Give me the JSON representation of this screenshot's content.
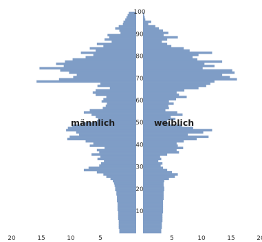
{
  "chart_data": {
    "type": "bar",
    "orientation": "horizontal",
    "colors": {
      "bar": "#7f9dc6",
      "background": "#ffffff"
    },
    "series": [
      {
        "name": "männlich",
        "values": [
          1.8,
          1.8,
          1.9,
          1.9,
          1.9,
          1.9,
          2.0,
          2.0,
          2.0,
          2.0,
          2.1,
          2.1,
          2.1,
          2.1,
          2.2,
          2.2,
          2.2,
          2.3,
          2.3,
          2.5,
          2.5,
          2.6,
          2.7,
          2.9,
          3.3,
          4.0,
          4.5,
          5.6,
          7.8,
          7.0,
          5.2,
          4.9,
          4.4,
          5.5,
          5.0,
          6.5,
          5.2,
          5.6,
          4.3,
          6.8,
          6.2,
          7.5,
          10.6,
          10.2,
          8.6,
          9.1,
          10.8,
          10.5,
          9.8,
          8.0,
          5.6,
          5.4,
          5.8,
          6.5,
          7.8,
          6.8,
          4.6,
          4.1,
          3.9,
          4.8,
          4.5,
          4.0,
          5.8,
          6.3,
          5.8,
          3.4,
          5.5,
          5.0,
          15.8,
          12.0,
          9.6,
          9.0,
          10.3,
          11.8,
          15.3,
          11.2,
          12.5,
          11.0,
          9.7,
          7.5,
          6.2,
          8.3,
          5.8,
          6.8,
          4.5,
          5.6,
          3.1,
          4.3,
          3.5,
          3.8,
          1.6,
          1.8,
          2.5,
          1.9,
          1.2,
          1.1,
          0.8,
          0.6,
          0.4,
          0.2
        ]
      },
      {
        "name": "weiblich",
        "values": [
          3.2,
          3.2,
          3.3,
          3.3,
          3.3,
          3.4,
          3.4,
          3.4,
          3.4,
          3.5,
          3.5,
          3.5,
          3.5,
          3.5,
          3.5,
          3.6,
          3.6,
          3.6,
          3.6,
          3.7,
          3.7,
          3.6,
          3.6,
          3.7,
          4.5,
          5.5,
          6.0,
          5.0,
          4.2,
          3.5,
          3.1,
          3.4,
          2.7,
          3.2,
          3.0,
          4.2,
          6.2,
          5.8,
          6.9,
          6.0,
          5.8,
          7.0,
          9.2,
          11.2,
          7.7,
          10.3,
          11.8,
          8.6,
          6.7,
          4.5,
          4.2,
          5.6,
          4.8,
          6.8,
          5.9,
          3.9,
          4.5,
          4.4,
          5.3,
          4.5,
          5.7,
          7.5,
          6.2,
          5.8,
          7.1,
          9.5,
          10.8,
          11.5,
          12.2,
          16.0,
          14.8,
          13.5,
          15.6,
          15.2,
          10.2,
          12.2,
          10.5,
          13.5,
          9.3,
          8.5,
          9.5,
          11.8,
          8.0,
          7.0,
          4.9,
          4.2,
          3.3,
          4.2,
          6.0,
          3.6,
          4.4,
          3.5,
          2.8,
          2.2,
          1.0,
          1.5,
          0.5,
          0.4,
          0.3,
          0.2
        ]
      }
    ],
    "y_ticks": [
      "10",
      "20",
      "30",
      "40",
      "50",
      "60",
      "70",
      "80",
      "90",
      "100"
    ],
    "x_ticks": [
      "20",
      "15",
      "10",
      "5",
      "5",
      "10",
      "15",
      "20"
    ],
    "xlim": [
      0,
      20
    ],
    "ylim": [
      0,
      100
    ],
    "grid": false,
    "legend": "none",
    "title": "",
    "xlabel": "",
    "ylabel": ""
  }
}
